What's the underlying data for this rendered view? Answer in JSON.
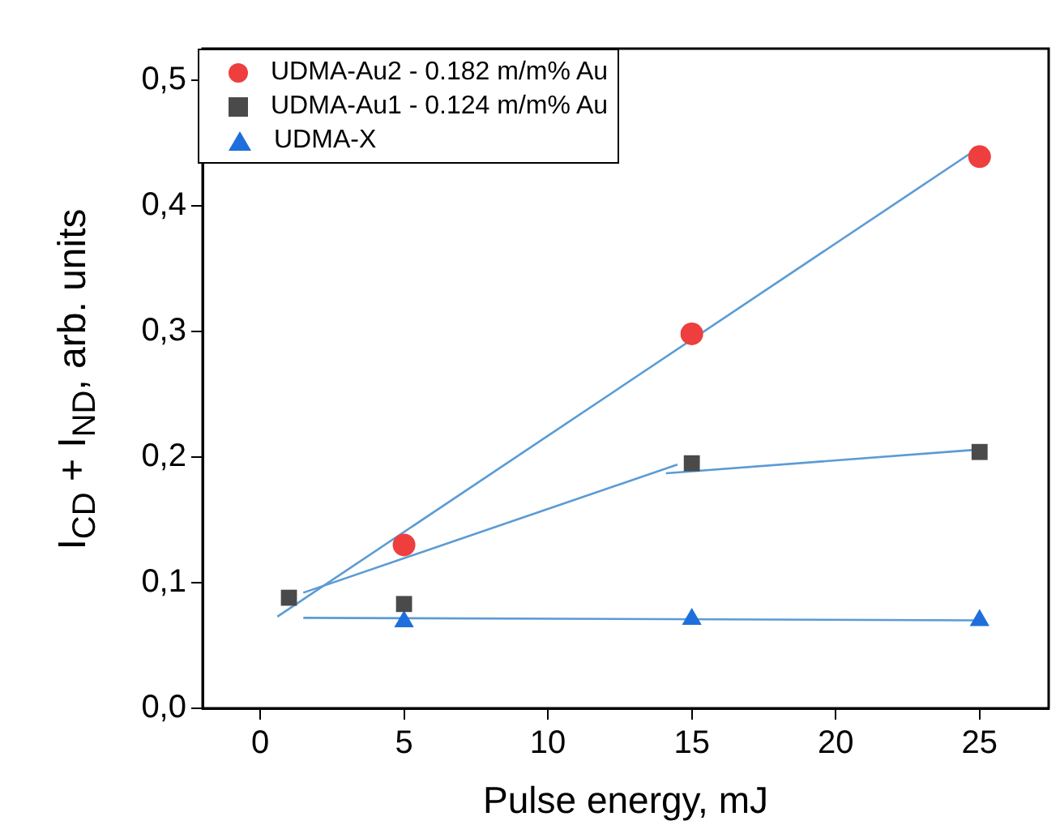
{
  "chart_data": {
    "type": "scatter",
    "xlabel": "Pulse energy, mJ",
    "ylabel": "I$_{CD}$ + I$_{ND}$, arb. units",
    "xlim": [
      -2,
      27.4
    ],
    "xticks": [
      0,
      5,
      10,
      15,
      20,
      25
    ],
    "ylim": [
      0,
      0.525
    ],
    "yticks": [
      {
        "value": 0,
        "label": "0,0"
      },
      {
        "value": 0.1,
        "label": "0,1"
      },
      {
        "value": 0.2,
        "label": "0,2"
      },
      {
        "value": 0.3,
        "label": "0,3"
      },
      {
        "value": 0.4,
        "label": "0,4"
      },
      {
        "value": 0.5,
        "label": "0,5"
      }
    ],
    "grid": false,
    "legend": "top left",
    "series": [
      {
        "name": "UDMA-Au2 - 0.182 m/m% Au",
        "color": "#ee3e3e",
        "marker": "circle",
        "x": [
          5,
          15,
          25
        ],
        "values": [
          0.13,
          0.298,
          0.439
        ]
      },
      {
        "name": "UDMA-Au1 - 0.124 m/m% Au",
        "color": "#4a4a4a",
        "marker": "square",
        "x": [
          1,
          5,
          15,
          25
        ],
        "values": [
          0.088,
          0.083,
          0.195,
          0.204
        ]
      },
      {
        "name": "UDMA-X",
        "color": "#1e6fdc",
        "marker": "triangle",
        "x": [
          5,
          15,
          25
        ],
        "values": [
          0.069,
          0.071,
          0.07
        ]
      },
      {
        "type": "line",
        "color": "#5b9bd5",
        "marker": "none",
        "x": [
          0.6,
          24.9
        ],
        "values": [
          0.073,
          0.445
        ]
      },
      {
        "type": "line",
        "color": "#5b9bd5",
        "marker": "none",
        "x": [
          1.5,
          14.5
        ],
        "values": [
          0.092,
          0.194
        ]
      },
      {
        "type": "line",
        "color": "#5b9bd5",
        "marker": "none",
        "x": [
          14.1,
          25
        ],
        "values": [
          0.187,
          0.206
        ]
      },
      {
        "type": "line",
        "color": "#5b9bd5",
        "marker": "none",
        "x": [
          1.5,
          25
        ],
        "values": [
          0.072,
          0.07
        ]
      }
    ]
  }
}
